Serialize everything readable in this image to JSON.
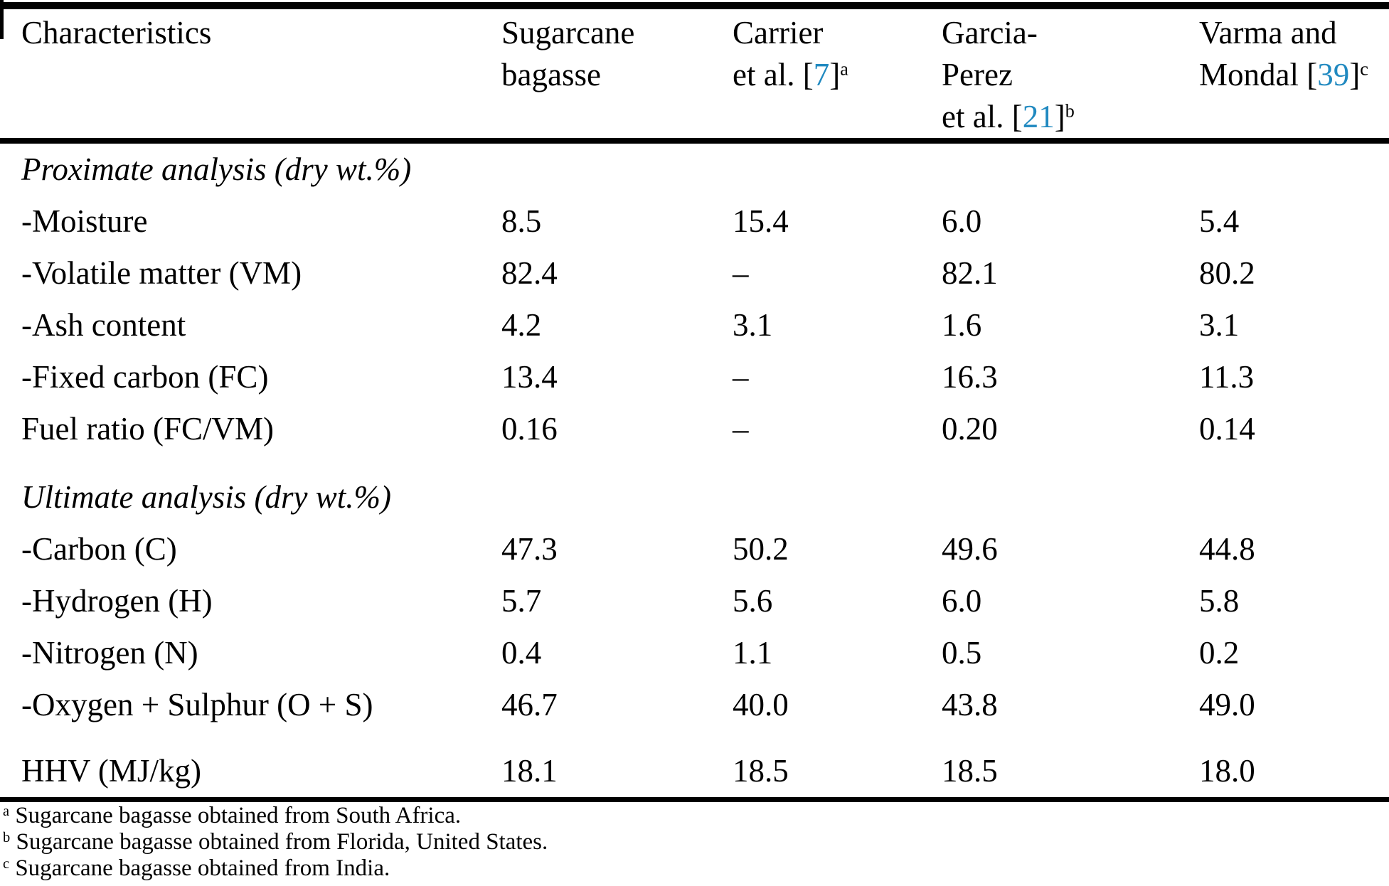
{
  "table": {
    "colors": {
      "citation_link": "#2089c0",
      "text": "#000000",
      "background": "#ffffff",
      "rule": "#000000"
    },
    "header": {
      "col1": {
        "line1": "Characteristics"
      },
      "col2": {
        "line1": "Sugarcane",
        "line2": "bagasse"
      },
      "col3": {
        "line1": "Carrier",
        "cite_pre": "et al. [",
        "ref": "7",
        "cite_post": "]",
        "sup": "a"
      },
      "col4": {
        "line1": "Garcia-",
        "line2": "Perez",
        "cite_pre": "et al. [",
        "ref": "21",
        "cite_post": "]",
        "sup": "b"
      },
      "col5": {
        "line1": "Varma and",
        "cite_pre": "Mondal [",
        "ref": "39",
        "cite_post": "]",
        "sup": "c"
      }
    },
    "rows": [
      {
        "type": "section",
        "label": "Proximate analysis (dry wt.%)"
      },
      {
        "type": "data",
        "label": "-Moisture",
        "values": [
          "8.5",
          "15.4",
          "6.0",
          "5.4"
        ]
      },
      {
        "type": "data",
        "label": "-Volatile matter (VM)",
        "values": [
          "82.4",
          "–",
          "82.1",
          "80.2"
        ]
      },
      {
        "type": "data",
        "label": "-Ash content",
        "values": [
          "4.2",
          "3.1",
          "1.6",
          "3.1"
        ]
      },
      {
        "type": "data",
        "label": "-Fixed carbon (FC)",
        "values": [
          "13.4",
          "–",
          "16.3",
          "11.3"
        ]
      },
      {
        "type": "data",
        "label": "Fuel ratio (FC/VM)",
        "values": [
          "0.16",
          "–",
          "0.20",
          "0.14"
        ]
      },
      {
        "type": "section",
        "label": "Ultimate analysis (dry wt.%)"
      },
      {
        "type": "data",
        "label": "-Carbon (C)",
        "values": [
          "47.3",
          "50.2",
          "49.6",
          "44.8"
        ]
      },
      {
        "type": "data",
        "label": "-Hydrogen (H)",
        "values": [
          "5.7",
          "5.6",
          "6.0",
          "5.8"
        ]
      },
      {
        "type": "data",
        "label": "-Nitrogen (N)",
        "values": [
          "0.4",
          "1.1",
          "0.5",
          "0.2"
        ]
      },
      {
        "type": "data",
        "label": "-Oxygen + Sulphur (O + S)",
        "values": [
          "46.7",
          "40.0",
          "43.8",
          "49.0"
        ]
      },
      {
        "type": "data",
        "label": "HHV (MJ/kg)",
        "values": [
          "18.1",
          "18.5",
          "18.5",
          "18.0"
        ],
        "gap_before": true
      }
    ],
    "footnotes": [
      {
        "marker": "a",
        "text": "Sugarcane bagasse obtained from South Africa."
      },
      {
        "marker": "b",
        "text": "Sugarcane bagasse obtained from Florida, United States."
      },
      {
        "marker": "c",
        "text": "Sugarcane bagasse obtained from India."
      }
    ]
  },
  "chart_data": {
    "type": "table",
    "title": "",
    "columns": [
      "Characteristics",
      "Sugarcane bagasse",
      "Carrier et al. [7]",
      "Garcia-Perez et al. [21]",
      "Varma and Mondal [39]"
    ],
    "sections": [
      {
        "name": "Proximate analysis (dry wt.%)",
        "rows": [
          [
            "-Moisture",
            8.5,
            15.4,
            6.0,
            5.4
          ],
          [
            "-Volatile matter (VM)",
            82.4,
            null,
            82.1,
            80.2
          ],
          [
            "-Ash content",
            4.2,
            3.1,
            1.6,
            3.1
          ],
          [
            "-Fixed carbon (FC)",
            13.4,
            null,
            16.3,
            11.3
          ],
          [
            "Fuel ratio (FC/VM)",
            0.16,
            null,
            0.2,
            0.14
          ]
        ]
      },
      {
        "name": "Ultimate analysis (dry wt.%)",
        "rows": [
          [
            "-Carbon (C)",
            47.3,
            50.2,
            49.6,
            44.8
          ],
          [
            "-Hydrogen (H)",
            5.7,
            5.6,
            6.0,
            5.8
          ],
          [
            "-Nitrogen (N)",
            0.4,
            1.1,
            0.5,
            0.2
          ],
          [
            "-Oxygen + Sulphur (O + S)",
            46.7,
            40.0,
            43.8,
            49.0
          ]
        ]
      },
      {
        "name": "",
        "rows": [
          [
            "HHV (MJ/kg)",
            18.1,
            18.5,
            18.5,
            18.0
          ]
        ]
      }
    ]
  }
}
